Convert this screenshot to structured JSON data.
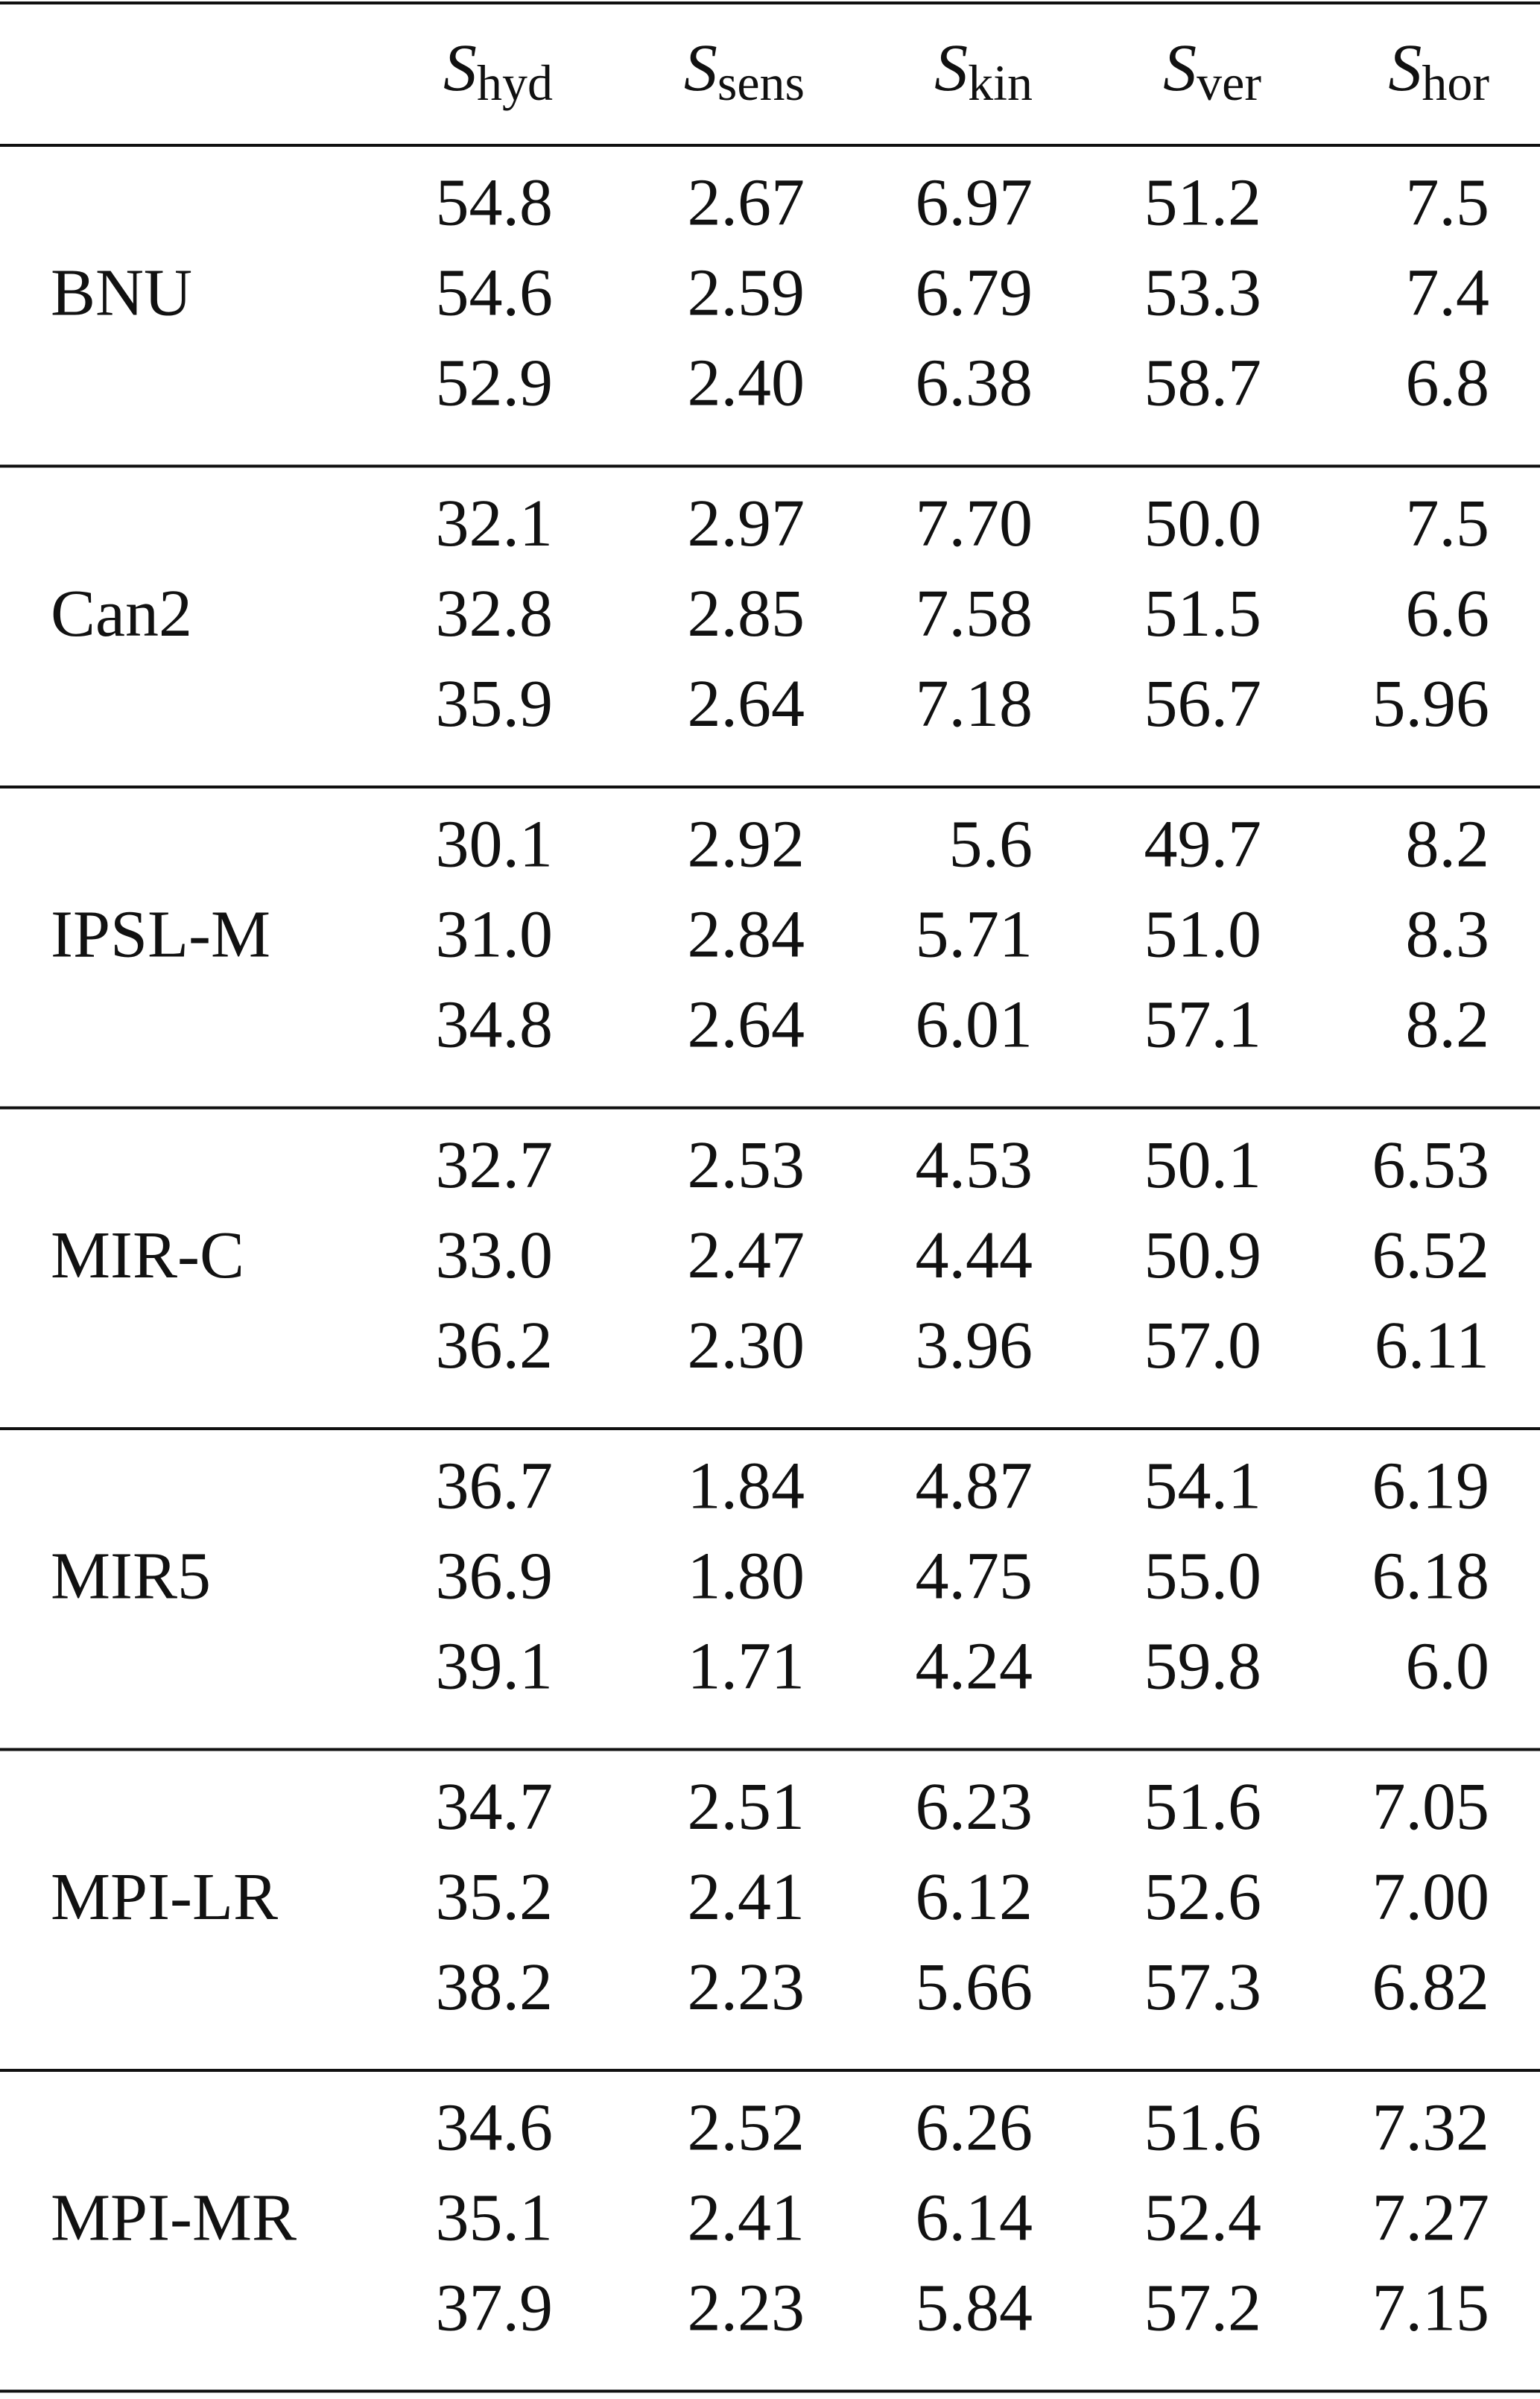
{
  "table": {
    "header": [
      {
        "symbol": "S",
        "sub": "hyd"
      },
      {
        "symbol": "S",
        "sub": "sens"
      },
      {
        "symbol": "S",
        "sub": "kin"
      },
      {
        "symbol": "S",
        "sub": "ver"
      },
      {
        "symbol": "S",
        "sub": "hor"
      }
    ],
    "groups": [
      {
        "model": "BNU",
        "rows": [
          [
            "54.8",
            "2.67",
            "6.97",
            "51.2",
            "7.5"
          ],
          [
            "54.6",
            "2.59",
            "6.79",
            "53.3",
            "7.4"
          ],
          [
            "52.9",
            "2.40",
            "6.38",
            "58.7",
            "6.8"
          ]
        ]
      },
      {
        "model": "Can2",
        "rows": [
          [
            "32.1",
            "2.97",
            "7.70",
            "50.0",
            "7.5"
          ],
          [
            "32.8",
            "2.85",
            "7.58",
            "51.5",
            "6.6"
          ],
          [
            "35.9",
            "2.64",
            "7.18",
            "56.7",
            "5.96"
          ]
        ]
      },
      {
        "model": "IPSL-M",
        "rows": [
          [
            "30.1",
            "2.92",
            "5.6",
            "49.7",
            "8.2"
          ],
          [
            "31.0",
            "2.84",
            "5.71",
            "51.0",
            "8.3"
          ],
          [
            "34.8",
            "2.64",
            "6.01",
            "57.1",
            "8.2"
          ]
        ]
      },
      {
        "model": "MIR-C",
        "rows": [
          [
            "32.7",
            "2.53",
            "4.53",
            "50.1",
            "6.53"
          ],
          [
            "33.0",
            "2.47",
            "4.44",
            "50.9",
            "6.52"
          ],
          [
            "36.2",
            "2.30",
            "3.96",
            "57.0",
            "6.11"
          ]
        ]
      },
      {
        "model": "MIR5",
        "rows": [
          [
            "36.7",
            "1.84",
            "4.87",
            "54.1",
            "6.19"
          ],
          [
            "36.9",
            "1.80",
            "4.75",
            "55.0",
            "6.18"
          ],
          [
            "39.1",
            "1.71",
            "4.24",
            "59.8",
            "6.0"
          ]
        ]
      },
      {
        "model": "MPI-LR",
        "rows": [
          [
            "34.7",
            "2.51",
            "6.23",
            "51.6",
            "7.05"
          ],
          [
            "35.2",
            "2.41",
            "6.12",
            "52.6",
            "7.00"
          ],
          [
            "38.2",
            "2.23",
            "5.66",
            "57.3",
            "6.82"
          ]
        ]
      },
      {
        "model": "MPI-MR",
        "rows": [
          [
            "34.6",
            "2.52",
            "6.26",
            "51.6",
            "7.32"
          ],
          [
            "35.1",
            "2.41",
            "6.14",
            "52.4",
            "7.27"
          ],
          [
            "37.9",
            "2.23",
            "5.84",
            "57.2",
            "7.15"
          ]
        ]
      }
    ]
  }
}
